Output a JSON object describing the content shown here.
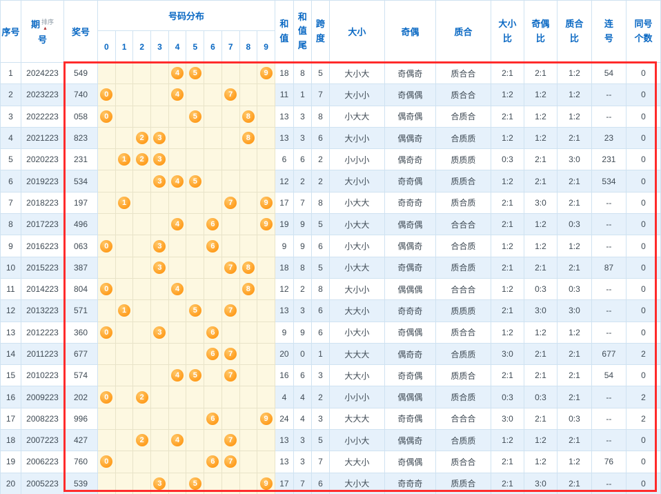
{
  "header": {
    "xuhao": "序号",
    "qihao_top": "期",
    "qihao_bottom": "号",
    "paixu": "排序",
    "sort_arrow": "▲",
    "jianghao": "奖号",
    "haoma_fenbu": "号码分布",
    "digits": [
      "0",
      "1",
      "2",
      "3",
      "4",
      "5",
      "6",
      "7",
      "8",
      "9"
    ],
    "hezhi": "和\n值",
    "hezhiwei": "和\n值\n尾",
    "kuadu": "跨\n度",
    "daxiao": "大小",
    "jiou": "奇偶",
    "zhihe": "质合",
    "daxiaobi": "大小\n比",
    "jioubi": "奇偶\n比",
    "zhihebi": "质合\n比",
    "lianhao": "连\n号",
    "tonghao": "同号\n个数"
  },
  "colors": {
    "header_text": "#0968c3",
    "ball_orange": "#ff8c00",
    "highlight_red": "#ff2b2b",
    "row_alt_blue": "#e6f1fb",
    "distribution_yellow": "#fdf8e1",
    "grid_blue": "#cfe2f1"
  },
  "rows": [
    {
      "no": "1",
      "period": "2024223",
      "prize": "549",
      "balls": [
        4,
        5,
        9
      ],
      "sum": "18",
      "tail": "8",
      "span": "5",
      "size": "大小大",
      "parity": "奇偶奇",
      "prime": "质合合",
      "size_ratio": "2:1",
      "parity_ratio": "2:1",
      "prime_ratio": "1:2",
      "consec": "54",
      "same_count": "0"
    },
    {
      "no": "2",
      "period": "2023223",
      "prize": "740",
      "balls": [
        0,
        4,
        7
      ],
      "sum": "11",
      "tail": "1",
      "span": "7",
      "size": "大小小",
      "parity": "奇偶偶",
      "prime": "质合合",
      "size_ratio": "1:2",
      "parity_ratio": "1:2",
      "prime_ratio": "1:2",
      "consec": "--",
      "same_count": "0"
    },
    {
      "no": "3",
      "period": "2022223",
      "prize": "058",
      "balls": [
        0,
        5,
        8
      ],
      "sum": "13",
      "tail": "3",
      "span": "8",
      "size": "小大大",
      "parity": "偶奇偶",
      "prime": "合质合",
      "size_ratio": "2:1",
      "parity_ratio": "1:2",
      "prime_ratio": "1:2",
      "consec": "--",
      "same_count": "0"
    },
    {
      "no": "4",
      "period": "2021223",
      "prize": "823",
      "balls": [
        2,
        3,
        8
      ],
      "sum": "13",
      "tail": "3",
      "span": "6",
      "size": "大小小",
      "parity": "偶偶奇",
      "prime": "合质质",
      "size_ratio": "1:2",
      "parity_ratio": "1:2",
      "prime_ratio": "2:1",
      "consec": "23",
      "same_count": "0"
    },
    {
      "no": "5",
      "period": "2020223",
      "prize": "231",
      "balls": [
        1,
        2,
        3
      ],
      "sum": "6",
      "tail": "6",
      "span": "2",
      "size": "小小小",
      "parity": "偶奇奇",
      "prime": "质质质",
      "size_ratio": "0:3",
      "parity_ratio": "2:1",
      "prime_ratio": "3:0",
      "consec": "231",
      "same_count": "0"
    },
    {
      "no": "6",
      "period": "2019223",
      "prize": "534",
      "balls": [
        3,
        4,
        5
      ],
      "sum": "12",
      "tail": "2",
      "span": "2",
      "size": "大小小",
      "parity": "奇奇偶",
      "prime": "质质合",
      "size_ratio": "1:2",
      "parity_ratio": "2:1",
      "prime_ratio": "2:1",
      "consec": "534",
      "same_count": "0"
    },
    {
      "no": "7",
      "period": "2018223",
      "prize": "197",
      "balls": [
        1,
        7,
        9
      ],
      "sum": "17",
      "tail": "7",
      "span": "8",
      "size": "小大大",
      "parity": "奇奇奇",
      "prime": "质合质",
      "size_ratio": "2:1",
      "parity_ratio": "3:0",
      "prime_ratio": "2:1",
      "consec": "--",
      "same_count": "0"
    },
    {
      "no": "8",
      "period": "2017223",
      "prize": "496",
      "balls": [
        4,
        6,
        9
      ],
      "sum": "19",
      "tail": "9",
      "span": "5",
      "size": "小大大",
      "parity": "偶奇偶",
      "prime": "合合合",
      "size_ratio": "2:1",
      "parity_ratio": "1:2",
      "prime_ratio": "0:3",
      "consec": "--",
      "same_count": "0"
    },
    {
      "no": "9",
      "period": "2016223",
      "prize": "063",
      "balls": [
        0,
        3,
        6
      ],
      "sum": "9",
      "tail": "9",
      "span": "6",
      "size": "小大小",
      "parity": "偶偶奇",
      "prime": "合合质",
      "size_ratio": "1:2",
      "parity_ratio": "1:2",
      "prime_ratio": "1:2",
      "consec": "--",
      "same_count": "0"
    },
    {
      "no": "10",
      "period": "2015223",
      "prize": "387",
      "balls": [
        3,
        7,
        8
      ],
      "sum": "18",
      "tail": "8",
      "span": "5",
      "size": "小大大",
      "parity": "奇偶奇",
      "prime": "质合质",
      "size_ratio": "2:1",
      "parity_ratio": "2:1",
      "prime_ratio": "2:1",
      "consec": "87",
      "same_count": "0"
    },
    {
      "no": "11",
      "period": "2014223",
      "prize": "804",
      "balls": [
        0,
        4,
        8
      ],
      "sum": "12",
      "tail": "2",
      "span": "8",
      "size": "大小小",
      "parity": "偶偶偶",
      "prime": "合合合",
      "size_ratio": "1:2",
      "parity_ratio": "0:3",
      "prime_ratio": "0:3",
      "consec": "--",
      "same_count": "0"
    },
    {
      "no": "12",
      "period": "2013223",
      "prize": "571",
      "balls": [
        1,
        5,
        7
      ],
      "sum": "13",
      "tail": "3",
      "span": "6",
      "size": "大大小",
      "parity": "奇奇奇",
      "prime": "质质质",
      "size_ratio": "2:1",
      "parity_ratio": "3:0",
      "prime_ratio": "3:0",
      "consec": "--",
      "same_count": "0"
    },
    {
      "no": "13",
      "period": "2012223",
      "prize": "360",
      "balls": [
        0,
        3,
        6
      ],
      "sum": "9",
      "tail": "9",
      "span": "6",
      "size": "小大小",
      "parity": "奇偶偶",
      "prime": "质合合",
      "size_ratio": "1:2",
      "parity_ratio": "1:2",
      "prime_ratio": "1:2",
      "consec": "--",
      "same_count": "0"
    },
    {
      "no": "14",
      "period": "2011223",
      "prize": "677",
      "balls": [
        6,
        7
      ],
      "sum": "20",
      "tail": "0",
      "span": "1",
      "size": "大大大",
      "parity": "偶奇奇",
      "prime": "合质质",
      "size_ratio": "3:0",
      "parity_ratio": "2:1",
      "prime_ratio": "2:1",
      "consec": "677",
      "same_count": "2"
    },
    {
      "no": "15",
      "period": "2010223",
      "prize": "574",
      "balls": [
        4,
        5,
        7
      ],
      "sum": "16",
      "tail": "6",
      "span": "3",
      "size": "大大小",
      "parity": "奇奇偶",
      "prime": "质质合",
      "size_ratio": "2:1",
      "parity_ratio": "2:1",
      "prime_ratio": "2:1",
      "consec": "54",
      "same_count": "0"
    },
    {
      "no": "16",
      "period": "2009223",
      "prize": "202",
      "balls": [
        0,
        2
      ],
      "sum": "4",
      "tail": "4",
      "span": "2",
      "size": "小小小",
      "parity": "偶偶偶",
      "prime": "质合质",
      "size_ratio": "0:3",
      "parity_ratio": "0:3",
      "prime_ratio": "2:1",
      "consec": "--",
      "same_count": "2"
    },
    {
      "no": "17",
      "period": "2008223",
      "prize": "996",
      "balls": [
        6,
        9
      ],
      "sum": "24",
      "tail": "4",
      "span": "3",
      "size": "大大大",
      "parity": "奇奇偶",
      "prime": "合合合",
      "size_ratio": "3:0",
      "parity_ratio": "2:1",
      "prime_ratio": "0:3",
      "consec": "--",
      "same_count": "2"
    },
    {
      "no": "18",
      "period": "2007223",
      "prize": "427",
      "balls": [
        2,
        4,
        7
      ],
      "sum": "13",
      "tail": "3",
      "span": "5",
      "size": "小小大",
      "parity": "偶偶奇",
      "prime": "合质质",
      "size_ratio": "1:2",
      "parity_ratio": "1:2",
      "prime_ratio": "2:1",
      "consec": "--",
      "same_count": "0"
    },
    {
      "no": "19",
      "period": "2006223",
      "prize": "760",
      "balls": [
        0,
        6,
        7
      ],
      "sum": "13",
      "tail": "3",
      "span": "7",
      "size": "大大小",
      "parity": "奇偶偶",
      "prime": "质合合",
      "size_ratio": "2:1",
      "parity_ratio": "1:2",
      "prime_ratio": "1:2",
      "consec": "76",
      "same_count": "0"
    },
    {
      "no": "20",
      "period": "2005223",
      "prize": "539",
      "balls": [
        3,
        5,
        9
      ],
      "sum": "17",
      "tail": "7",
      "span": "6",
      "size": "大小大",
      "parity": "奇奇奇",
      "prime": "质质合",
      "size_ratio": "2:1",
      "parity_ratio": "3:0",
      "prime_ratio": "2:1",
      "consec": "--",
      "same_count": "0"
    }
  ]
}
